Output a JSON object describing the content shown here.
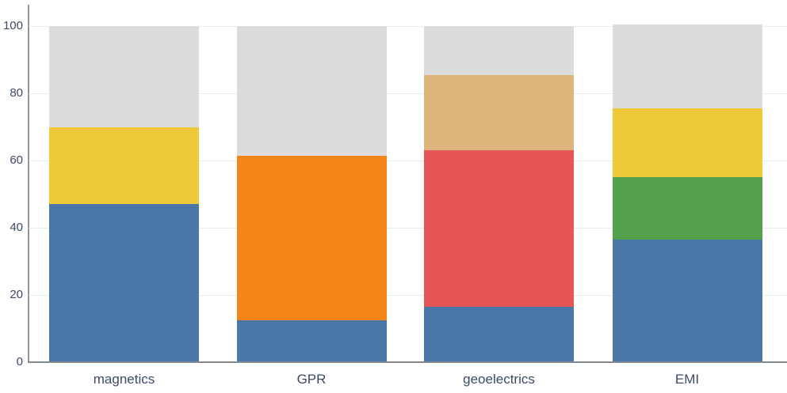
{
  "chart_data": {
    "type": "bar",
    "stacked": true,
    "orientation": "vertical",
    "title": "",
    "xlabel": "",
    "ylabel": "",
    "legend": "none",
    "grid": true,
    "ylim": [
      0,
      106
    ],
    "yticks": [
      0,
      20,
      40,
      60,
      80,
      100
    ],
    "categories": [
      "magnetics",
      "GPR",
      "geoelectrics",
      "EMI"
    ],
    "palette": {
      "blue": "#4c78a8",
      "orange": "#f58518",
      "red": "#e45756",
      "tan": "#ddb57c",
      "green": "#54a24b",
      "yellow": "#eeca3b",
      "gray": "#dcdcdc"
    },
    "bars": [
      {
        "category": "magnetics",
        "total": 100,
        "segments": [
          {
            "name": "blue",
            "color": "#4c78a8",
            "value": 47
          },
          {
            "name": "yellow",
            "color": "#eeca3b",
            "value": 23
          },
          {
            "name": "gray",
            "color": "#dcdcdc",
            "value": 30
          }
        ]
      },
      {
        "category": "GPR",
        "total": 100,
        "segments": [
          {
            "name": "blue",
            "color": "#4c78a8",
            "value": 12.5
          },
          {
            "name": "orange",
            "color": "#f58518",
            "value": 49
          },
          {
            "name": "gray",
            "color": "#dcdcdc",
            "value": 38.5
          }
        ]
      },
      {
        "category": "geoelectrics",
        "total": 100,
        "segments": [
          {
            "name": "blue",
            "color": "#4c78a8",
            "value": 16.5
          },
          {
            "name": "red",
            "color": "#e45756",
            "value": 46.5
          },
          {
            "name": "tan",
            "color": "#ddb57c",
            "value": 22.5
          },
          {
            "name": "gray",
            "color": "#dcdcdc",
            "value": 14.5
          }
        ]
      },
      {
        "category": "EMI",
        "total": 100.5,
        "segments": [
          {
            "name": "blue",
            "color": "#4c78a8",
            "value": 36.5
          },
          {
            "name": "green",
            "color": "#54a24b",
            "value": 18.5
          },
          {
            "name": "yellow",
            "color": "#eeca3b",
            "value": 20.5
          },
          {
            "name": "gray",
            "color": "#dcdcdc",
            "value": 25
          }
        ]
      }
    ],
    "axis_text_color": "#3b4a68",
    "gridline_color": "#e5ecf0"
  }
}
